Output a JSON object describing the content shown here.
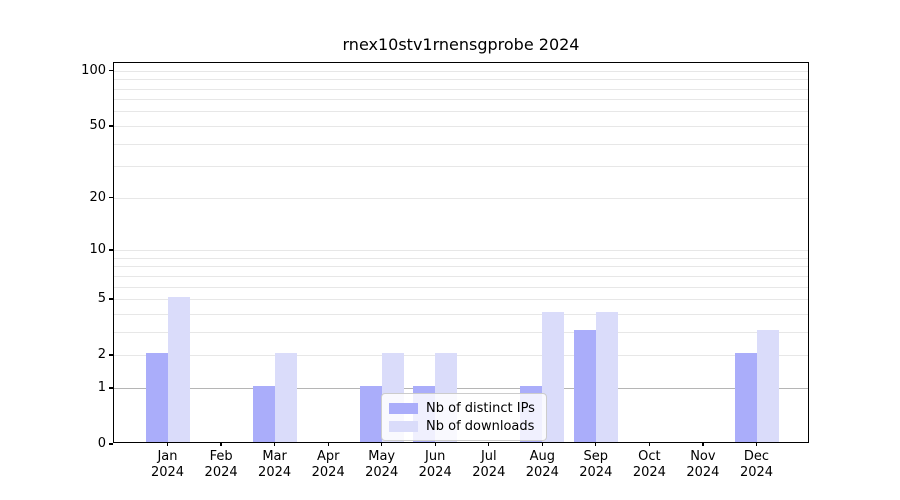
{
  "title": "rnex10stv1rnensgprobe 2024",
  "chart_data": {
    "type": "bar",
    "title": "rnex10stv1rnensgprobe 2024",
    "scale": "log1p",
    "categories": [
      "Jan",
      "Feb",
      "Mar",
      "Apr",
      "May",
      "Jun",
      "Jul",
      "Aug",
      "Sep",
      "Oct",
      "Nov",
      "Dec"
    ],
    "year_label": "2024",
    "series": [
      {
        "name": "Nb of distinct IPs",
        "color": "#aaadfa",
        "values": [
          2,
          0,
          1,
          0,
          1,
          1,
          0,
          1,
          3,
          0,
          0,
          2
        ]
      },
      {
        "name": "Nb of downloads",
        "color": "#dadcfa",
        "values": [
          5,
          0,
          2,
          0,
          2,
          2,
          0,
          4,
          4,
          0,
          0,
          3
        ]
      }
    ],
    "xlabel": "",
    "ylabel": "",
    "y_ticks": [
      0,
      1,
      2,
      5,
      10,
      20,
      50,
      100
    ],
    "ylim": [
      0,
      110
    ],
    "minor_gridlines": [
      2,
      3,
      4,
      5,
      6,
      7,
      8,
      9,
      10,
      20,
      30,
      40,
      50,
      60,
      70,
      80,
      90,
      100
    ],
    "emphasized_gridline": 1,
    "grid": true,
    "legend_position": "lower-center"
  }
}
